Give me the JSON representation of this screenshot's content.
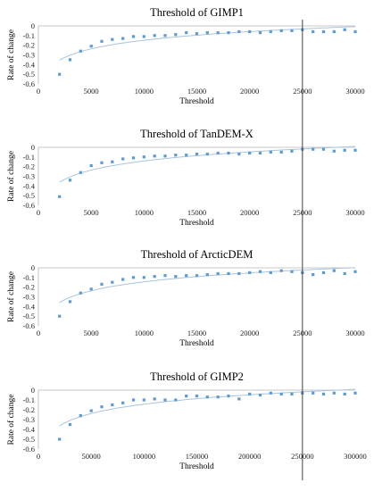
{
  "chart_data": [
    {
      "type": "scatter",
      "title": "Threshold of GIMP1",
      "xlabel": "Threshold",
      "ylabel": "Rate of change",
      "xlim": [
        0,
        30000
      ],
      "ylim": [
        -0.6,
        0
      ],
      "xticks": [
        0,
        5000,
        10000,
        15000,
        20000,
        25000,
        30000
      ],
      "xtick_labels": [
        "0",
        "5000",
        "10000",
        "15000",
        "20000",
        "25000",
        "30000"
      ],
      "yticks": [
        0,
        -0.1,
        -0.2,
        -0.3,
        -0.4,
        -0.5,
        -0.6
      ],
      "ytick_labels": [
        "0",
        "-0.1",
        "-0.2",
        "-0.3",
        "-0.4",
        "-0.5",
        "-0.6"
      ],
      "grid": false,
      "trendline": true,
      "marker_color": "#5b9bd5",
      "trendline_color": "#a9c4de",
      "x": [
        2000,
        3000,
        4000,
        5000,
        6000,
        7000,
        8000,
        9000,
        10000,
        11000,
        12000,
        13000,
        14000,
        15000,
        16000,
        17000,
        18000,
        19000,
        20000,
        21000,
        22000,
        23000,
        24000,
        25000,
        26000,
        27000,
        28000,
        29000,
        30000
      ],
      "y": [
        -0.5,
        -0.35,
        -0.26,
        -0.21,
        -0.16,
        -0.14,
        -0.13,
        -0.11,
        -0.11,
        -0.1,
        -0.1,
        -0.09,
        -0.07,
        -0.08,
        -0.07,
        -0.07,
        -0.07,
        -0.06,
        -0.06,
        -0.07,
        -0.06,
        -0.05,
        -0.05,
        -0.04,
        -0.06,
        -0.06,
        -0.06,
        -0.04,
        -0.06
      ]
    },
    {
      "type": "scatter",
      "title": "Threshold of TanDEM-X",
      "xlabel": "Threshold",
      "ylabel": "Rate of change",
      "xlim": [
        0,
        30000
      ],
      "ylim": [
        -0.6,
        0
      ],
      "xticks": [
        0,
        5000,
        10000,
        15000,
        20000,
        25000,
        30000
      ],
      "xtick_labels": [
        "0",
        "5000",
        "10000",
        "15000",
        "20000",
        "25000",
        "30000"
      ],
      "yticks": [
        0,
        -0.1,
        -0.2,
        -0.3,
        -0.4,
        -0.5,
        -0.6
      ],
      "ytick_labels": [
        "0",
        "-0.1",
        "-0.2",
        "-0.3",
        "-0.4",
        "-0.5",
        "-0.6"
      ],
      "grid": false,
      "trendline": true,
      "marker_color": "#5b9bd5",
      "trendline_color": "#a9c4de",
      "x": [
        2000,
        3000,
        4000,
        5000,
        6000,
        7000,
        8000,
        9000,
        10000,
        11000,
        12000,
        13000,
        14000,
        15000,
        16000,
        17000,
        18000,
        19000,
        20000,
        21000,
        22000,
        23000,
        24000,
        25000,
        26000,
        27000,
        28000,
        29000,
        30000
      ],
      "y": [
        -0.51,
        -0.34,
        -0.26,
        -0.19,
        -0.16,
        -0.15,
        -0.12,
        -0.11,
        -0.1,
        -0.09,
        -0.09,
        -0.08,
        -0.08,
        -0.07,
        -0.07,
        -0.06,
        -0.06,
        -0.07,
        -0.06,
        -0.06,
        -0.05,
        -0.05,
        -0.04,
        -0.02,
        -0.02,
        -0.02,
        -0.04,
        -0.03,
        -0.03
      ]
    },
    {
      "type": "scatter",
      "title": "Threshold of ArcticDEM",
      "xlabel": "Threshold",
      "ylabel": "Rate of change",
      "xlim": [
        0,
        30000
      ],
      "ylim": [
        -0.6,
        0
      ],
      "xticks": [
        0,
        5000,
        10000,
        15000,
        20000,
        25000,
        30000
      ],
      "xtick_labels": [
        "0",
        "5000",
        "10000",
        "15000",
        "20000",
        "25000",
        "30000"
      ],
      "yticks": [
        0,
        -0.1,
        -0.2,
        -0.3,
        -0.4,
        -0.5,
        -0.6
      ],
      "ytick_labels": [
        "0",
        "-0.1",
        "-0.2",
        "-0.3",
        "-0.4",
        "-0.5",
        "-0.6"
      ],
      "grid": false,
      "trendline": true,
      "marker_color": "#5b9bd5",
      "trendline_color": "#a9c4de",
      "x": [
        2000,
        3000,
        4000,
        5000,
        6000,
        7000,
        8000,
        9000,
        10000,
        11000,
        12000,
        13000,
        14000,
        15000,
        16000,
        17000,
        18000,
        19000,
        20000,
        21000,
        22000,
        23000,
        24000,
        25000,
        26000,
        27000,
        28000,
        29000,
        30000
      ],
      "y": [
        -0.5,
        -0.35,
        -0.26,
        -0.22,
        -0.17,
        -0.15,
        -0.12,
        -0.1,
        -0.1,
        -0.09,
        -0.08,
        -0.09,
        -0.08,
        -0.08,
        -0.07,
        -0.06,
        -0.06,
        -0.06,
        -0.05,
        -0.04,
        -0.05,
        -0.03,
        -0.04,
        -0.05,
        -0.07,
        -0.05,
        -0.03,
        -0.06,
        -0.04
      ]
    },
    {
      "type": "scatter",
      "title": "Threshold of GIMP2",
      "xlabel": "Threshold",
      "ylabel": "Rate of change",
      "xlim": [
        0,
        300000
      ],
      "ylim": [
        -0.6,
        0
      ],
      "xticks": [
        0,
        50000,
        100000,
        150000,
        200000,
        250000,
        300000
      ],
      "xtick_labels": [
        "0",
        "50000",
        "100000",
        "150000",
        "200000",
        "250000",
        "300000"
      ],
      "yticks": [
        0,
        -0.1,
        -0.2,
        -0.3,
        -0.4,
        -0.5,
        -0.6
      ],
      "ytick_labels": [
        "0",
        "-0.1",
        "-0.2",
        "-0.3",
        "-0.4",
        "-0.5",
        "-0.6"
      ],
      "grid": false,
      "trendline": true,
      "marker_color": "#5b9bd5",
      "trendline_color": "#a9c4de",
      "x": [
        20000,
        30000,
        40000,
        50000,
        60000,
        70000,
        80000,
        90000,
        100000,
        110000,
        120000,
        130000,
        140000,
        150000,
        160000,
        170000,
        180000,
        190000,
        200000,
        210000,
        220000,
        230000,
        240000,
        250000,
        260000,
        270000,
        280000,
        290000,
        300000
      ],
      "y": [
        -0.5,
        -0.35,
        -0.26,
        -0.21,
        -0.17,
        -0.15,
        -0.13,
        -0.1,
        -0.1,
        -0.09,
        -0.1,
        -0.1,
        -0.06,
        -0.06,
        -0.07,
        -0.07,
        -0.06,
        -0.09,
        -0.04,
        -0.05,
        -0.03,
        -0.04,
        -0.04,
        -0.03,
        -0.03,
        -0.04,
        -0.03,
        -0.04,
        -0.03
      ]
    }
  ],
  "reference_line": {
    "x_value": 25000,
    "x_value_gimp2": 250000,
    "color": "#404040"
  }
}
